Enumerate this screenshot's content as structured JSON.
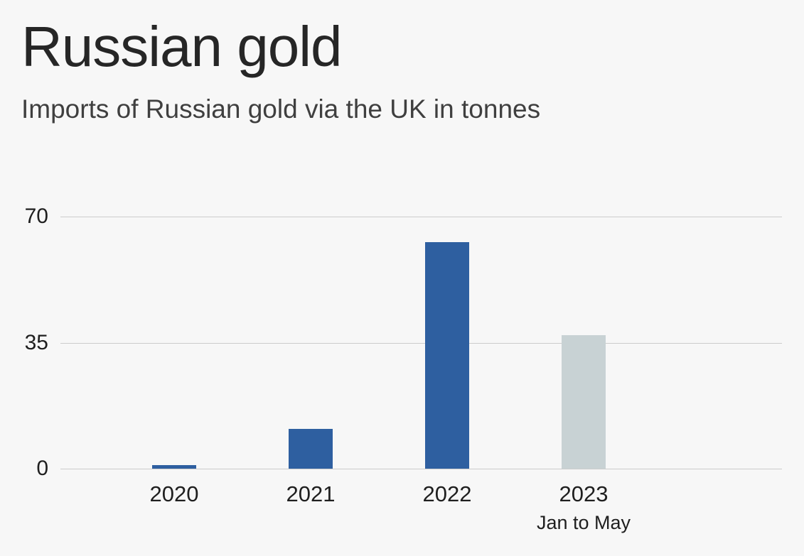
{
  "chart_data": {
    "type": "bar",
    "title": "Russian gold",
    "subtitle": "Imports of Russian gold via the UK in tonnes",
    "categories": [
      "2020",
      "2021",
      "2022",
      "2023"
    ],
    "category_sublabels": [
      "",
      "",
      "",
      "Jan to May"
    ],
    "values": [
      1,
      11,
      63,
      37
    ],
    "unit": "tonnes",
    "xlabel": "",
    "ylabel": "",
    "ylim": [
      0,
      70
    ],
    "yticks": [
      0,
      35,
      70
    ],
    "grid": true,
    "legend": "none",
    "bar_colors": [
      "#2e5fa0",
      "#2e5fa0",
      "#2e5fa0",
      "#c8d2d4"
    ],
    "colors": {
      "bar_default": "#2e5fa0",
      "bar_final_partial": "#c8d2d4",
      "background": "#f7f7f7",
      "gridline": "#cccccc",
      "text": "#1f1f1f"
    }
  }
}
